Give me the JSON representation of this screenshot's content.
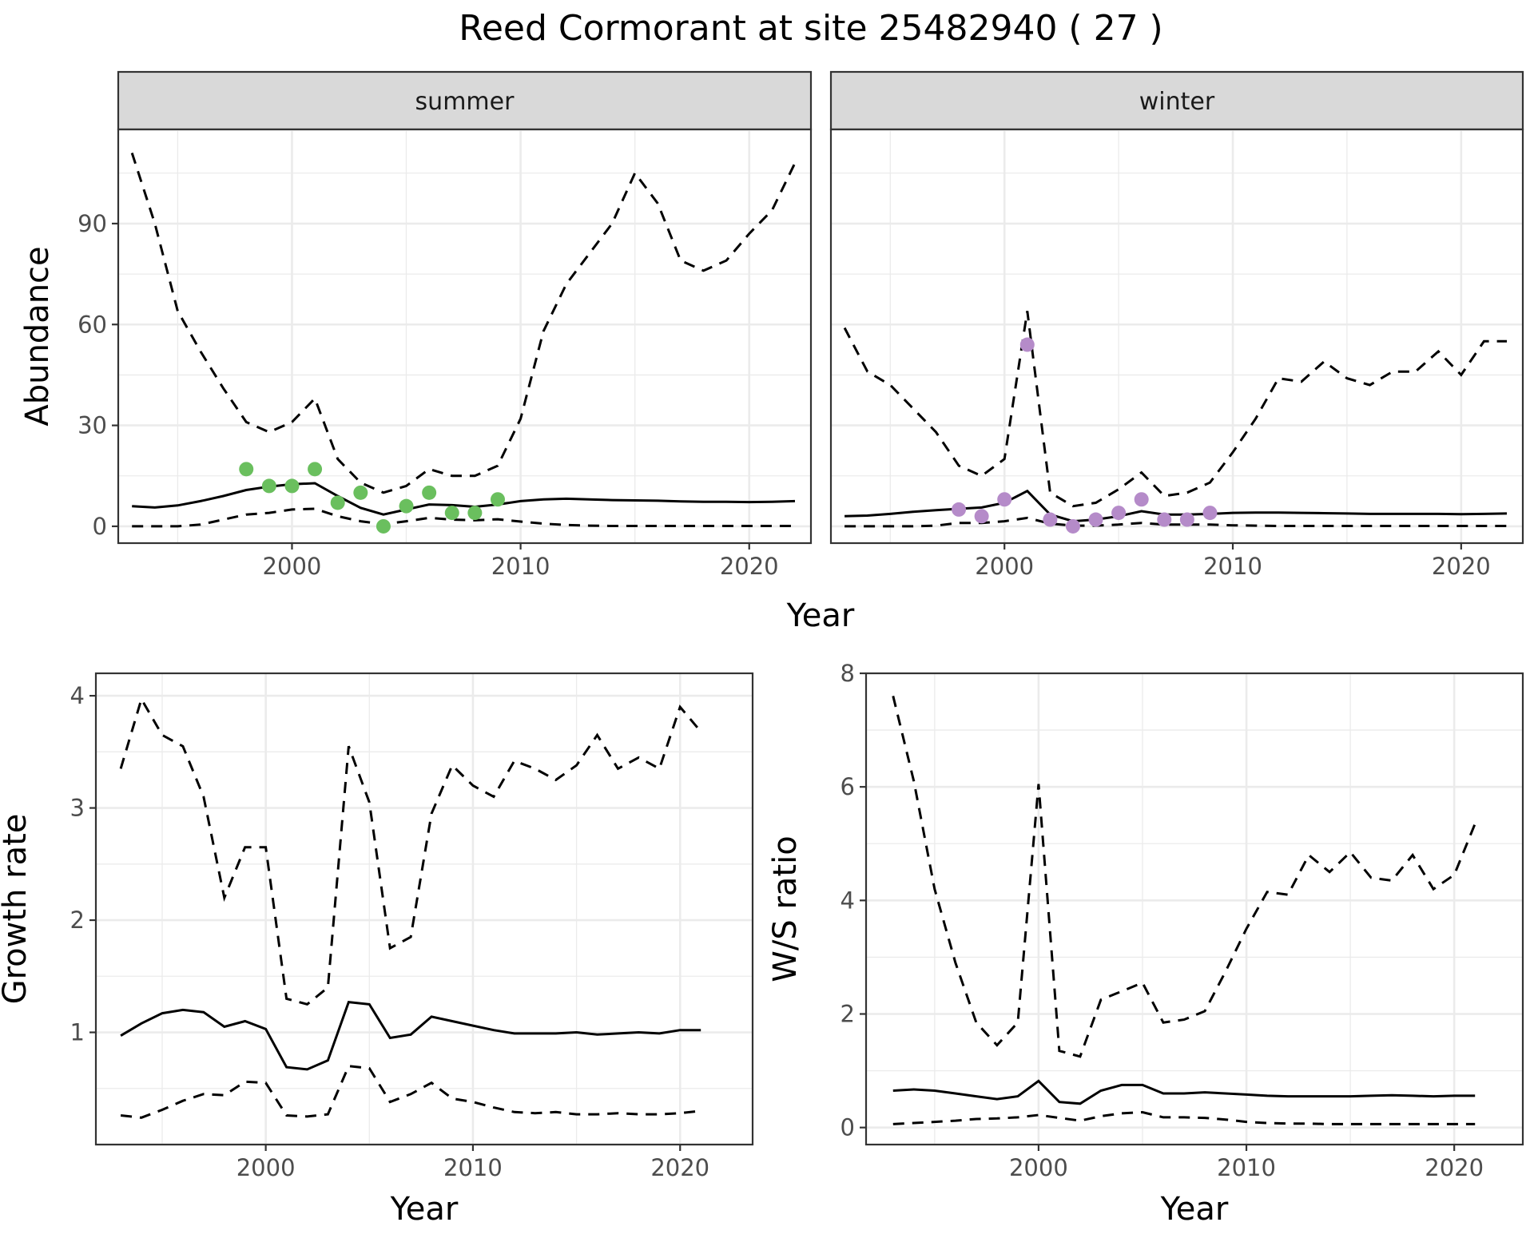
{
  "title": "Reed Cormorant at site 25482940 ( 27 )",
  "colors": {
    "summer_points": "#6abf5e",
    "winter_points": "#b58bc9"
  },
  "chart_data": [
    {
      "type": "line",
      "panel": "summer",
      "strip_label": "summer",
      "xlabel": "Year",
      "ylabel": "Abundance",
      "xlim": [
        1992.4,
        2022.7
      ],
      "ylim": [
        -5,
        118
      ],
      "x_ticks": [
        2000,
        2010,
        2020
      ],
      "y_ticks": [
        0,
        30,
        60,
        90
      ],
      "grid": true,
      "series": [
        {
          "style": "solid",
          "x": [
            1993,
            1994,
            1995,
            1996,
            1997,
            1998,
            1999,
            2000,
            2001,
            2002,
            2003,
            2004,
            2005,
            2006,
            2007,
            2008,
            2009,
            2010,
            2011,
            2012,
            2013,
            2014,
            2015,
            2016,
            2017,
            2018,
            2019,
            2020,
            2021,
            2022
          ],
          "y": [
            6,
            5.6,
            6.2,
            7.5,
            9,
            10.8,
            11.8,
            12.5,
            12.8,
            9,
            5.5,
            3.5,
            5,
            6.5,
            6.3,
            5.8,
            6.5,
            7.5,
            8,
            8.2,
            8,
            7.8,
            7.7,
            7.6,
            7.4,
            7.3,
            7.3,
            7.2,
            7.3,
            7.5
          ]
        },
        {
          "style": "dashed",
          "x": [
            1993,
            1994,
            1995,
            1996,
            1997,
            1998,
            1999,
            2000,
            2001,
            2002,
            2003,
            2004,
            2005,
            2006,
            2007,
            2008,
            2009,
            2010,
            2011,
            2012,
            2013,
            2014,
            2015,
            2016,
            2017,
            2018,
            2019,
            2020,
            2021,
            2022
          ],
          "y": [
            111,
            90,
            64,
            52,
            41,
            31,
            28,
            31,
            38,
            20,
            13,
            10,
            12,
            17,
            15,
            15,
            18,
            32,
            58,
            72,
            81,
            90,
            105,
            96,
            79,
            76,
            79,
            87,
            94,
            108
          ]
        },
        {
          "style": "dashed",
          "x": [
            1993,
            1994,
            1995,
            1996,
            1997,
            1998,
            1999,
            2000,
            2001,
            2002,
            2003,
            2004,
            2005,
            2006,
            2007,
            2008,
            2009,
            2010,
            2011,
            2012,
            2013,
            2014,
            2015,
            2016,
            2017,
            2018,
            2019,
            2020,
            2021,
            2022
          ],
          "y": [
            0,
            0,
            0,
            0.5,
            2,
            3.5,
            4,
            5,
            5.2,
            3,
            1.5,
            0.6,
            1.5,
            2.5,
            2,
            1.8,
            2.1,
            1.4,
            0.8,
            0.4,
            0.2,
            0.1,
            0.1,
            0.1,
            0.1,
            0.1,
            0.1,
            0.1,
            0.1,
            0.1
          ]
        }
      ],
      "points": {
        "x": [
          1998,
          1999,
          2000,
          2001,
          2002,
          2003,
          2004,
          2005,
          2006,
          2007,
          2008,
          2009
        ],
        "y": [
          17,
          12,
          12,
          17,
          7,
          10,
          0,
          6,
          10,
          4,
          4,
          8
        ]
      }
    },
    {
      "type": "line",
      "panel": "winter",
      "strip_label": "winter",
      "xlabel": "Year",
      "ylabel": "",
      "xlim": [
        1992.4,
        2022.7
      ],
      "ylim": [
        -5,
        118
      ],
      "x_ticks": [
        2000,
        2010,
        2020
      ],
      "y_ticks": [],
      "grid": true,
      "series": [
        {
          "style": "solid",
          "x": [
            1993,
            1994,
            1995,
            1996,
            1997,
            1998,
            1999,
            2000,
            2001,
            2002,
            2003,
            2004,
            2005,
            2006,
            2007,
            2008,
            2009,
            2010,
            2011,
            2012,
            2013,
            2014,
            2015,
            2016,
            2017,
            2018,
            2019,
            2020,
            2021,
            2022
          ],
          "y": [
            3,
            3.2,
            3.7,
            4.3,
            4.8,
            5.2,
            5.6,
            7,
            10.5,
            3.5,
            1.5,
            2,
            3,
            4.5,
            3.5,
            3.5,
            3.7,
            4,
            4.1,
            4.1,
            4,
            3.9,
            3.8,
            3.7,
            3.7,
            3.7,
            3.7,
            3.6,
            3.7,
            3.8
          ]
        },
        {
          "style": "dashed",
          "x": [
            1993,
            1994,
            1995,
            1996,
            1997,
            1998,
            1999,
            2000,
            2001,
            2002,
            2003,
            2004,
            2005,
            2006,
            2007,
            2008,
            2009,
            2010,
            2011,
            2012,
            2013,
            2014,
            2015,
            2016,
            2017,
            2018,
            2019,
            2020,
            2021,
            2022
          ],
          "y": [
            59,
            46,
            42,
            35,
            28,
            18,
            15,
            20,
            64,
            10,
            6,
            7,
            11,
            16,
            9,
            10,
            13,
            22,
            32,
            44,
            43,
            49,
            44,
            42,
            46,
            46,
            52,
            45,
            55,
            55
          ]
        },
        {
          "style": "dashed",
          "x": [
            1993,
            1994,
            1995,
            1996,
            1997,
            1998,
            1999,
            2000,
            2001,
            2002,
            2003,
            2004,
            2005,
            2006,
            2007,
            2008,
            2009,
            2010,
            2011,
            2012,
            2013,
            2014,
            2015,
            2016,
            2017,
            2018,
            2019,
            2020,
            2021,
            2022
          ],
          "y": [
            0,
            0,
            0,
            0,
            0.2,
            1,
            1,
            1.5,
            2.5,
            0.8,
            0.2,
            0.2,
            0.5,
            1,
            0.5,
            0.5,
            0.5,
            0.3,
            0.2,
            0.1,
            0.1,
            0.1,
            0.1,
            0.1,
            0.1,
            0.1,
            0.1,
            0.1,
            0.1,
            0.1
          ]
        }
      ],
      "points": {
        "x": [
          1998,
          1999,
          2000,
          2001,
          2002,
          2003,
          2004,
          2005,
          2006,
          2007,
          2008,
          2009
        ],
        "y": [
          5,
          3,
          8,
          54,
          2,
          0,
          2,
          4,
          8,
          2,
          2,
          4
        ]
      }
    },
    {
      "type": "line",
      "panel": "growth",
      "xlabel": "Year",
      "ylabel": "Growth rate",
      "xlim": [
        1991.8,
        2023.5
      ],
      "ylim": [
        0.0,
        4.2
      ],
      "x_ticks": [
        2000,
        2010,
        2020
      ],
      "y_ticks": [
        1,
        2,
        3,
        4
      ],
      "grid": true,
      "series": [
        {
          "style": "solid",
          "x": [
            1993,
            1994,
            1995,
            1996,
            1997,
            1998,
            1999,
            2000,
            2001,
            2002,
            2003,
            2004,
            2005,
            2006,
            2007,
            2008,
            2009,
            2010,
            2011,
            2012,
            2013,
            2014,
            2015,
            2016,
            2017,
            2018,
            2019,
            2020,
            2021
          ],
          "y": [
            0.97,
            1.08,
            1.17,
            1.2,
            1.18,
            1.05,
            1.1,
            1.03,
            0.69,
            0.67,
            0.75,
            1.27,
            1.25,
            0.95,
            0.98,
            1.14,
            1.1,
            1.06,
            1.02,
            0.99,
            0.99,
            0.99,
            1.0,
            0.98,
            0.99,
            1.0,
            0.99,
            1.02,
            1.02
          ]
        },
        {
          "style": "dashed",
          "x": [
            1993,
            1994,
            1995,
            1996,
            1997,
            1998,
            1999,
            2000,
            2001,
            2002,
            2003,
            2004,
            2005,
            2006,
            2007,
            2008,
            2009,
            2010,
            2011,
            2012,
            2013,
            2014,
            2015,
            2016,
            2017,
            2018,
            2019,
            2020,
            2021
          ],
          "y": [
            3.35,
            3.97,
            3.65,
            3.55,
            3.1,
            2.2,
            2.65,
            2.65,
            1.3,
            1.25,
            1.4,
            3.55,
            3.05,
            1.75,
            1.85,
            2.95,
            3.38,
            3.2,
            3.1,
            3.42,
            3.35,
            3.25,
            3.38,
            3.65,
            3.35,
            3.45,
            3.35,
            3.9,
            3.68
          ]
        },
        {
          "style": "dashed",
          "x": [
            1993,
            1994,
            1995,
            1996,
            1997,
            1998,
            1999,
            2000,
            2001,
            2002,
            2003,
            2004,
            2005,
            2006,
            2007,
            2008,
            2009,
            2010,
            2011,
            2012,
            2013,
            2014,
            2015,
            2016,
            2017,
            2018,
            2019,
            2020,
            2021
          ],
          "y": [
            0.26,
            0.24,
            0.31,
            0.39,
            0.45,
            0.44,
            0.56,
            0.55,
            0.26,
            0.25,
            0.27,
            0.7,
            0.68,
            0.38,
            0.45,
            0.55,
            0.41,
            0.38,
            0.33,
            0.29,
            0.28,
            0.29,
            0.27,
            0.27,
            0.28,
            0.27,
            0.27,
            0.28,
            0.3
          ]
        }
      ]
    },
    {
      "type": "line",
      "panel": "ratio",
      "xlabel": "Year",
      "ylabel": "W/S ratio",
      "xlim": [
        1991.7,
        2023.3
      ],
      "ylim": [
        -0.3,
        8.0
      ],
      "x_ticks": [
        2000,
        2010,
        2020
      ],
      "y_ticks": [
        0,
        2,
        4,
        6,
        8
      ],
      "grid": true,
      "series": [
        {
          "style": "solid",
          "x": [
            1993,
            1994,
            1995,
            1996,
            1997,
            1998,
            1999,
            2000,
            2001,
            2002,
            2003,
            2004,
            2005,
            2006,
            2007,
            2008,
            2009,
            2010,
            2011,
            2012,
            2013,
            2014,
            2015,
            2016,
            2017,
            2018,
            2019,
            2020,
            2021
          ],
          "y": [
            0.65,
            0.67,
            0.65,
            0.6,
            0.55,
            0.5,
            0.55,
            0.82,
            0.45,
            0.42,
            0.65,
            0.75,
            0.75,
            0.6,
            0.6,
            0.62,
            0.6,
            0.58,
            0.56,
            0.55,
            0.55,
            0.55,
            0.55,
            0.56,
            0.57,
            0.56,
            0.55,
            0.56,
            0.56
          ]
        },
        {
          "style": "dashed",
          "x": [
            1993,
            1994,
            1995,
            1996,
            1997,
            1998,
            1999,
            2000,
            2001,
            2002,
            2003,
            2004,
            2005,
            2006,
            2007,
            2008,
            2009,
            2010,
            2011,
            2012,
            2013,
            2014,
            2015,
            2016,
            2017,
            2018,
            2019,
            2020,
            2021
          ],
          "y": [
            7.6,
            6.1,
            4.2,
            2.9,
            1.85,
            1.45,
            1.85,
            6.05,
            1.35,
            1.25,
            2.25,
            2.4,
            2.55,
            1.85,
            1.9,
            2.05,
            2.75,
            3.5,
            4.15,
            4.1,
            4.8,
            4.5,
            4.85,
            4.4,
            4.35,
            4.8,
            4.2,
            4.45,
            5.35
          ]
        },
        {
          "style": "dashed",
          "x": [
            1993,
            1994,
            1995,
            1996,
            1997,
            1998,
            1999,
            2000,
            2001,
            2002,
            2003,
            2004,
            2005,
            2006,
            2007,
            2008,
            2009,
            2010,
            2011,
            2012,
            2013,
            2014,
            2015,
            2016,
            2017,
            2018,
            2019,
            2020,
            2021
          ],
          "y": [
            0.06,
            0.08,
            0.1,
            0.12,
            0.15,
            0.16,
            0.18,
            0.22,
            0.17,
            0.12,
            0.2,
            0.25,
            0.27,
            0.18,
            0.18,
            0.17,
            0.14,
            0.1,
            0.08,
            0.07,
            0.07,
            0.06,
            0.06,
            0.06,
            0.06,
            0.06,
            0.06,
            0.06,
            0.06
          ]
        }
      ]
    }
  ]
}
